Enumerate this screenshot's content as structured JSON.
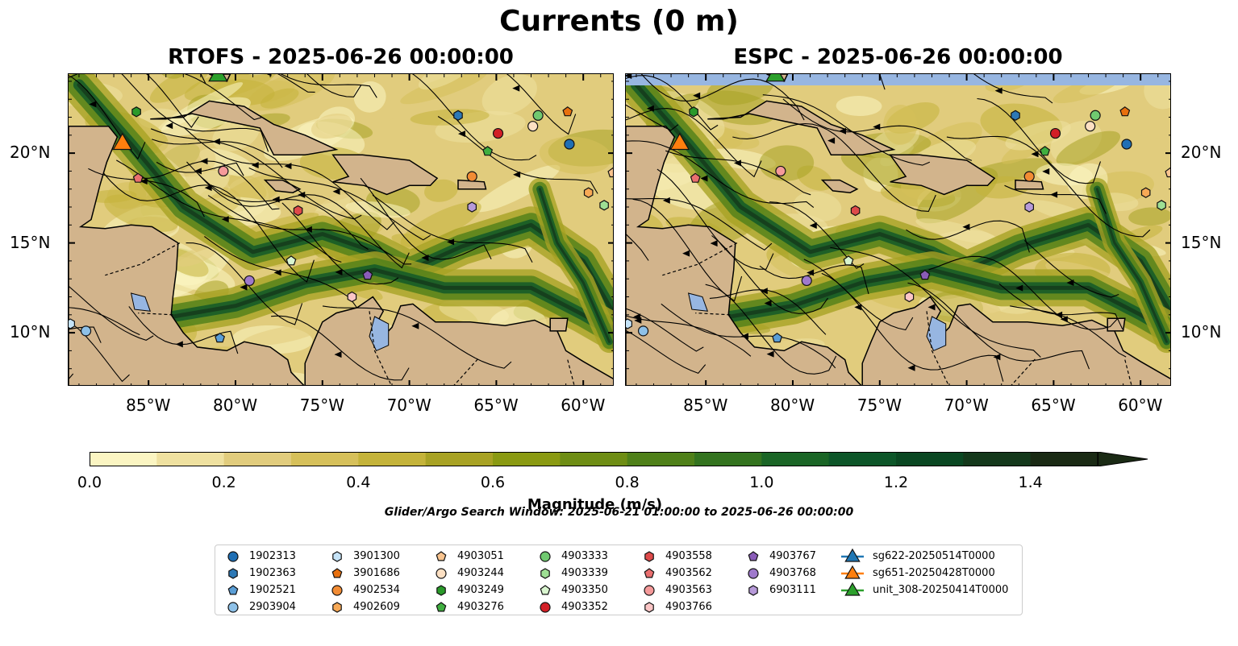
{
  "title": "Currents (0 m)",
  "panels": [
    {
      "title": "RTOFS - 2025-06-26 00:00:00"
    },
    {
      "title": "ESPC - 2025-06-26 00:00:00"
    }
  ],
  "axes": {
    "lon_ticks": [
      "85°W",
      "80°W",
      "75°W",
      "70°W",
      "65°W",
      "60°W"
    ],
    "lat_ticks": [
      "20°N",
      "15°N",
      "10°N"
    ],
    "lon_range": [
      -89.6,
      -58.2
    ],
    "lat_range": [
      7.0,
      24.4
    ]
  },
  "colorbar": {
    "label": "Magnitude (m/s)",
    "ticks": [
      "0.0",
      "0.2",
      "0.4",
      "0.6",
      "0.8",
      "1.0",
      "1.2",
      "1.4"
    ],
    "min": 0.0,
    "max": 1.5,
    "step": 0.1,
    "extend": "max",
    "colors": [
      "#fbf5c2",
      "#efe1a0",
      "#e1cc7d",
      "#d6c05a",
      "#c4b33a",
      "#a8a224",
      "#8a9a12",
      "#6e8d14",
      "#4f8019",
      "#33731f",
      "#1a6526",
      "#0d5629",
      "#0a4722",
      "#14381b",
      "#1a2a14"
    ]
  },
  "search_window": "Glider/Argo Search Window: 2025-06-21 01:00:00 to 2025-06-26 00:00:00",
  "colors": {
    "land": "#d2b48c",
    "water_feature": "#97b6e1",
    "streamline": "#000000"
  },
  "legend": {
    "columns": [
      [
        {
          "label": "1902313",
          "marker": "circle",
          "color": "#1f6fb4"
        },
        {
          "label": "1902363",
          "marker": "hexagon",
          "color": "#2d78b5"
        },
        {
          "label": "1902521",
          "marker": "pentagon",
          "color": "#5a9ed6"
        },
        {
          "label": "2903904",
          "marker": "circle",
          "color": "#8ec1e8"
        }
      ],
      [
        {
          "label": "3901300",
          "marker": "hexagon",
          "color": "#c5e3f7"
        },
        {
          "label": "3901686",
          "marker": "pentagon",
          "color": "#e8700e"
        },
        {
          "label": "4902534",
          "marker": "circle",
          "color": "#f28c34"
        },
        {
          "label": "4902609",
          "marker": "hexagon",
          "color": "#f7a956"
        }
      ],
      [
        {
          "label": "4903051",
          "marker": "pentagon",
          "color": "#f9c48f"
        },
        {
          "label": "4903244",
          "marker": "circle",
          "color": "#fde0c3"
        },
        {
          "label": "4903249",
          "marker": "hexagon",
          "color": "#2a9a2a"
        },
        {
          "label": "4903276",
          "marker": "pentagon",
          "color": "#3fae3f"
        }
      ],
      [
        {
          "label": "4903333",
          "marker": "circle",
          "color": "#70c970"
        },
        {
          "label": "4903339",
          "marker": "hexagon",
          "color": "#9edf94"
        },
        {
          "label": "4903350",
          "marker": "pentagon",
          "color": "#d9f5cf"
        },
        {
          "label": "4903352",
          "marker": "circle",
          "color": "#d21f26"
        }
      ],
      [
        {
          "label": "4903558",
          "marker": "hexagon",
          "color": "#de4a4a"
        },
        {
          "label": "4903562",
          "marker": "pentagon",
          "color": "#ea6f6f"
        },
        {
          "label": "4903563",
          "marker": "circle",
          "color": "#f59a9a"
        },
        {
          "label": "4903766",
          "marker": "hexagon",
          "color": "#fbc6c6"
        }
      ],
      [
        {
          "label": "4903767",
          "marker": "pentagon",
          "color": "#8a5cb8"
        },
        {
          "label": "4903768",
          "marker": "circle",
          "color": "#9f79cc"
        },
        {
          "label": "6903111",
          "marker": "hexagon",
          "color": "#b79ad9"
        }
      ],
      [
        {
          "label": "sg622-20250514T0000",
          "marker": "triangle",
          "color": "#1f77b4"
        },
        {
          "label": "sg651-20250428T0000",
          "marker": "triangle",
          "color": "#ff7f0e"
        },
        {
          "label": "unit_308-20250414T0000",
          "marker": "triangle",
          "color": "#2ca02c"
        }
      ]
    ]
  },
  "floats": [
    {
      "id": "1902313",
      "lon": -60.8,
      "lat": 20.5
    },
    {
      "id": "1902363",
      "lon": -67.2,
      "lat": 22.1
    },
    {
      "id": "1902521",
      "lon": -80.9,
      "lat": 9.7
    },
    {
      "id": "2903904",
      "lon": -88.6,
      "lat": 10.1
    },
    {
      "id": "3901300",
      "lon": -89.5,
      "lat": 10.5
    },
    {
      "id": "3901686",
      "lon": -60.9,
      "lat": 22.3
    },
    {
      "id": "4902534",
      "lon": -66.4,
      "lat": 18.7
    },
    {
      "id": "4902609",
      "lon": -59.7,
      "lat": 17.8
    },
    {
      "id": "4903051",
      "lon": -58.3,
      "lat": 18.9
    },
    {
      "id": "4903244",
      "lon": -62.9,
      "lat": 21.5
    },
    {
      "id": "4903249",
      "lon": -85.7,
      "lat": 22.3
    },
    {
      "id": "4903276",
      "lon": -65.5,
      "lat": 20.1
    },
    {
      "id": "4903333",
      "lon": -62.6,
      "lat": 22.1
    },
    {
      "id": "4903339",
      "lon": -58.8,
      "lat": 17.1
    },
    {
      "id": "4903350",
      "lon": -76.8,
      "lat": 14.0
    },
    {
      "id": "4903352",
      "lon": -64.9,
      "lat": 21.1
    },
    {
      "id": "4903558",
      "lon": -76.4,
      "lat": 16.8
    },
    {
      "id": "4903562",
      "lon": -85.6,
      "lat": 18.6
    },
    {
      "id": "4903563",
      "lon": -80.7,
      "lat": 19.0
    },
    {
      "id": "4903766",
      "lon": -73.3,
      "lat": 12.0
    },
    {
      "id": "4903767",
      "lon": -72.4,
      "lat": 13.2
    },
    {
      "id": "4903768",
      "lon": -79.2,
      "lat": 12.9
    },
    {
      "id": "6903111",
      "lon": -66.4,
      "lat": 17.0
    }
  ],
  "gliders": [
    {
      "id": "sg651-20250428T0000",
      "lon": -86.5,
      "lat": 20.5
    },
    {
      "id": "unit_308-20250414T0000",
      "lon": -81.0,
      "lat": 24.3
    }
  ]
}
